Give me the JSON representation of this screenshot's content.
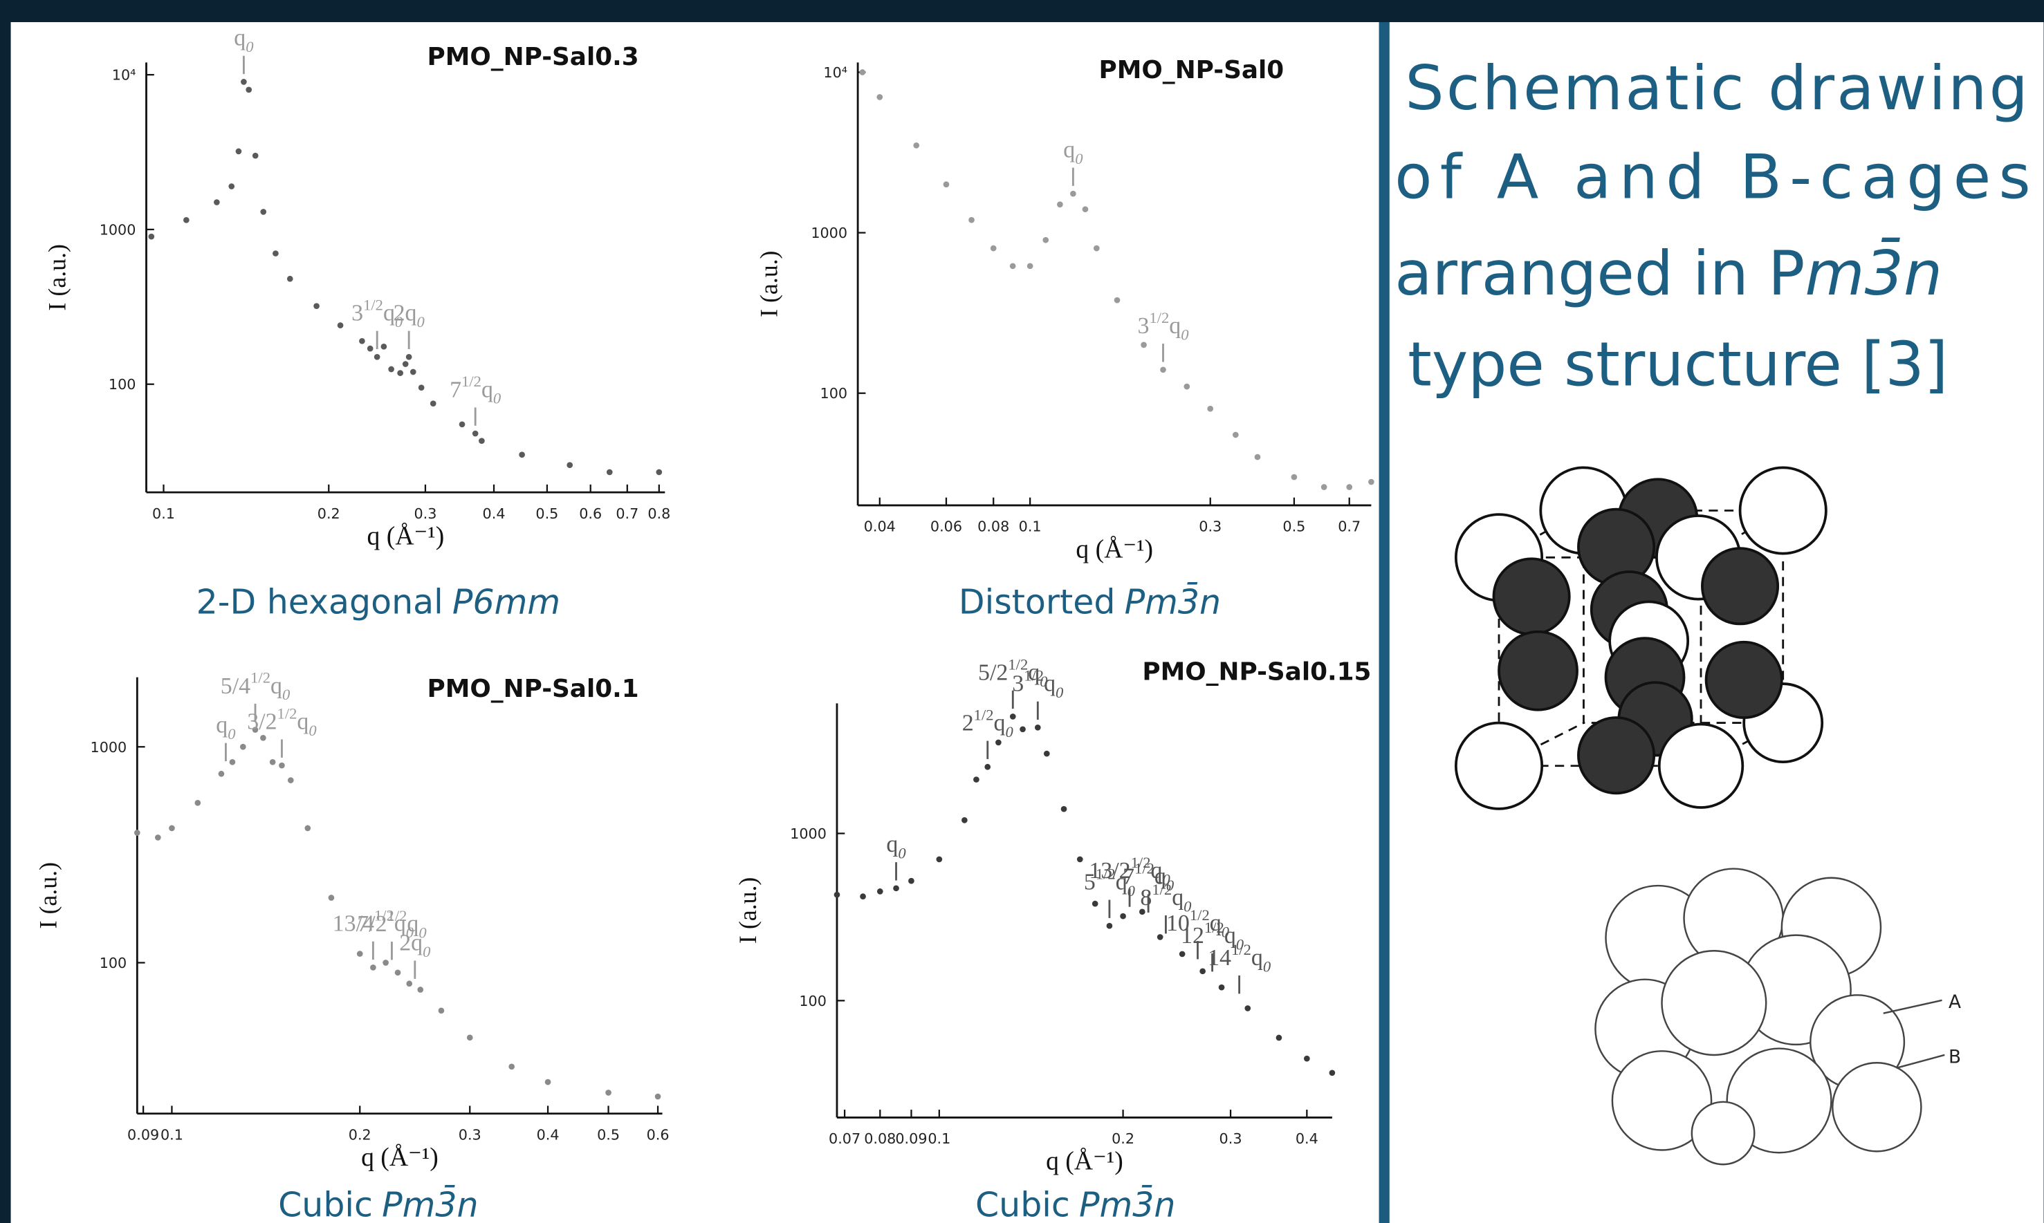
{
  "chart_data": [
    {
      "type": "scatter",
      "title": "PMO_NP-Sal0.3",
      "xlabel": "q (Å⁻¹)",
      "ylabel": "I (a.u.)",
      "log_x": true,
      "log_y": true,
      "color": "#5a5a5a",
      "label_color": "#9a9a9a",
      "xlim": [
        0.093,
        0.82
      ],
      "ylim": [
        20,
        12000
      ],
      "xticks": [
        0.1,
        0.2,
        0.3,
        0.4,
        0.5,
        0.6,
        0.7,
        0.8
      ],
      "yticks": [
        100,
        1000,
        {
          "value": 10000,
          "label": "10⁴"
        }
      ],
      "x": [
        0.095,
        0.11,
        0.125,
        0.133,
        0.137,
        0.14,
        0.143,
        0.147,
        0.152,
        0.16,
        0.17,
        0.19,
        0.21,
        0.23,
        0.238,
        0.245,
        0.252,
        0.26,
        0.27,
        0.276,
        0.28,
        0.285,
        0.295,
        0.31,
        0.35,
        0.37,
        0.38,
        0.45,
        0.55,
        0.65,
        0.8
      ],
      "values": [
        900,
        1150,
        1500,
        1900,
        3200,
        9000,
        8000,
        3000,
        1300,
        700,
        480,
        320,
        240,
        190,
        170,
        150,
        175,
        125,
        118,
        135,
        150,
        120,
        95,
        75,
        55,
        48,
        43,
        35,
        30,
        27,
        27
      ],
      "annotations": [
        {
          "x": 0.14,
          "q": "q",
          "sub": "0"
        },
        {
          "x": 0.245,
          "pre": "3",
          "sup": "1/2",
          "q": "q",
          "sub": "0"
        },
        {
          "x": 0.28,
          "pre": "2",
          "q": "q",
          "sub": "0"
        },
        {
          "x": 0.37,
          "pre": "7",
          "sup": "1/2",
          "q": "q",
          "sub": "0"
        }
      ],
      "caption": {
        "text": "2-D hexagonal",
        "symmetry": "P6mm"
      }
    },
    {
      "type": "scatter",
      "title": "PMO_NP-Sal0",
      "xlabel": "q (Å⁻¹)",
      "ylabel": "I (a.u.)",
      "log_x": true,
      "log_y": true,
      "color": "#9a9a9a",
      "label_color": "#9a9a9a",
      "xlim": [
        0.035,
        0.8
      ],
      "ylim": [
        20,
        11500
      ],
      "xticks": [
        0.04,
        0.06,
        0.08,
        0.1,
        0.3,
        0.5,
        0.7
      ],
      "yticks": [
        100,
        1000,
        {
          "value": 10000,
          "label": "10⁴"
        }
      ],
      "x": [
        0.036,
        0.04,
        0.05,
        0.06,
        0.07,
        0.08,
        0.09,
        0.1,
        0.11,
        0.12,
        0.13,
        0.14,
        0.15,
        0.17,
        0.2,
        0.225,
        0.26,
        0.3,
        0.35,
        0.4,
        0.5,
        0.6,
        0.7,
        0.8
      ],
      "values": [
        10000,
        7000,
        3500,
        2000,
        1200,
        800,
        620,
        620,
        900,
        1500,
        1750,
        1400,
        800,
        380,
        200,
        140,
        110,
        80,
        55,
        40,
        30,
        26,
        26,
        28
      ],
      "annotations": [
        {
          "x": 0.13,
          "q": "q",
          "sub": "0"
        },
        {
          "x": 0.225,
          "pre": "3",
          "sup": "1/2",
          "q": "q",
          "sub": "0"
        }
      ],
      "caption": {
        "text": "Distorted",
        "symmetry": "Pm3̄n"
      }
    },
    {
      "type": "scatter",
      "title": "PMO_NP-Sal0.1",
      "xlabel": "q (Å⁻¹)",
      "ylabel": "I (a.u.)",
      "log_x": true,
      "log_y": true,
      "color": "#8a8a8a",
      "label_color": "#9a9a9a",
      "xlim": [
        0.088,
        0.61
      ],
      "ylim": [
        20,
        2100
      ],
      "xticks": [
        0.09,
        0.1,
        0.2,
        0.3,
        0.4,
        0.5,
        0.6
      ],
      "yticks": [
        100,
        1000
      ],
      "x": [
        0.088,
        0.095,
        0.1,
        0.11,
        0.12,
        0.125,
        0.13,
        0.136,
        0.14,
        0.145,
        0.15,
        0.155,
        0.165,
        0.18,
        0.2,
        0.21,
        0.22,
        0.23,
        0.24,
        0.25,
        0.27,
        0.3,
        0.35,
        0.4,
        0.5,
        0.6
      ],
      "values": [
        400,
        380,
        420,
        550,
        750,
        850,
        1000,
        1200,
        1100,
        850,
        820,
        700,
        420,
        200,
        110,
        95,
        100,
        90,
        80,
        75,
        60,
        45,
        33,
        28,
        25,
        24
      ],
      "annotations": [
        {
          "x": 0.122,
          "q": "q",
          "sub": "0"
        },
        {
          "x": 0.136,
          "pre": "5/4",
          "sup": "1/2",
          "q": "q",
          "sub": "0"
        },
        {
          "x": 0.15,
          "pre": "3/2",
          "sup": "1/2",
          "q": "q",
          "sub": "0"
        },
        {
          "x": 0.21,
          "pre": "13/4",
          "sup": "1/2",
          "q": "q",
          "sub": "0"
        },
        {
          "x": 0.225,
          "pre": "7/2",
          "sup": "1/2",
          "q": "q",
          "sub": "0"
        },
        {
          "x": 0.245,
          "pre": "2",
          "q": "q",
          "sub": "0"
        }
      ],
      "caption": {
        "text": "Cubic",
        "symmetry": "Pm3̄n"
      }
    },
    {
      "type": "scatter",
      "title": "PMO_NP-Sal0.15",
      "xlabel": "q (Å⁻¹)",
      "ylabel": "I (a.u.)",
      "log_x": true,
      "log_y": true,
      "color": "#3a3a3a",
      "label_color": "#555555",
      "xlim": [
        0.068,
        0.44
      ],
      "ylim": [
        20,
        6000
      ],
      "xticks": [
        0.07,
        0.08,
        0.09,
        0.1,
        0.2,
        0.3,
        0.4
      ],
      "yticks": [
        100,
        1000
      ],
      "x": [
        0.068,
        0.075,
        0.08,
        0.085,
        0.09,
        0.1,
        0.11,
        0.115,
        0.12,
        0.125,
        0.132,
        0.137,
        0.145,
        0.15,
        0.16,
        0.17,
        0.18,
        0.19,
        0.2,
        0.215,
        0.23,
        0.25,
        0.27,
        0.29,
        0.32,
        0.36,
        0.4,
        0.44
      ],
      "values": [
        430,
        420,
        450,
        470,
        520,
        700,
        1200,
        2100,
        2500,
        3500,
        5000,
        4200,
        4300,
        3000,
        1400,
        700,
        380,
        280,
        320,
        340,
        240,
        190,
        150,
        120,
        90,
        60,
        45,
        37
      ],
      "annotations": [
        {
          "x": 0.085,
          "q": "q",
          "sub": "0"
        },
        {
          "x": 0.12,
          "pre": "2",
          "sup": "1/2",
          "q": "q",
          "sub": "0"
        },
        {
          "x": 0.132,
          "pre": "5/2",
          "sup": "1/2",
          "q": "q",
          "sub": "0"
        },
        {
          "x": 0.145,
          "pre": "3",
          "sup": "1/2",
          "q": "q",
          "sub": "0"
        },
        {
          "x": 0.19,
          "pre": "5",
          "sup": "1/2",
          "q": "q",
          "sub": "0"
        },
        {
          "x": 0.205,
          "pre": "13/2",
          "sup": "1/2",
          "q": "q",
          "sub": "0"
        },
        {
          "x": 0.22,
          "pre": "7",
          "sup": "1/2",
          "q": "q",
          "sub": "0"
        },
        {
          "x": 0.235,
          "pre": "8",
          "sup": "1/2",
          "q": "q",
          "sub": "0"
        },
        {
          "x": 0.265,
          "pre": "10",
          "sup": "1/2",
          "q": "q",
          "sub": "0"
        },
        {
          "x": 0.28,
          "pre": "12",
          "sup": "1/2",
          "q": "q",
          "sub": "0"
        },
        {
          "x": 0.31,
          "pre": "14",
          "sup": "1/2",
          "q": "q",
          "sub": "0"
        }
      ],
      "caption": {
        "text": "Cubic",
        "symmetry": "Pm3̄n"
      }
    }
  ],
  "side_panel": {
    "title_lines": [
      [
        {
          "text": "Schematic drawing"
        }
      ],
      [
        {
          "text": "of A and B-cages"
        }
      ],
      [
        {
          "text": "arranged in P"
        },
        {
          "text": "m3̄n",
          "italic": true
        }
      ],
      [
        {
          "text": "type structure [3]"
        }
      ]
    ],
    "cage_labels": [
      "A",
      "B"
    ]
  }
}
